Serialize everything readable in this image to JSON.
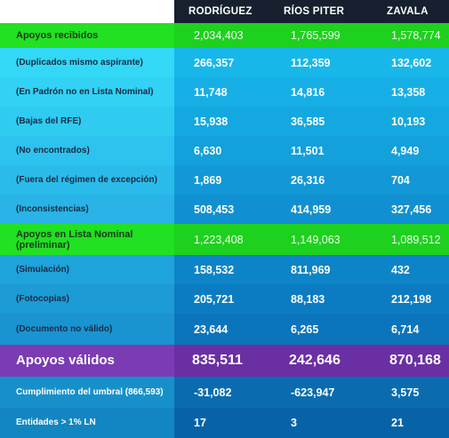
{
  "chart_data": {
    "type": "table",
    "columns": [
      "RODRÍGUEZ",
      "RÍOS PITER",
      "ZAVALA"
    ],
    "rows": [
      {
        "label": "Apoyos recibidos",
        "values": [
          "2,034,403",
          "1,765,599",
          "1,578,774"
        ],
        "style": "green"
      },
      {
        "label": "(Duplicados mismo aspirante)",
        "values": [
          "266,357",
          "112,359",
          "132,602"
        ],
        "style": "blue"
      },
      {
        "label": "(En Padrón no en Lista Nominal)",
        "values": [
          "11,748",
          "14,816",
          "13,358"
        ],
        "style": "blue"
      },
      {
        "label": "(Bajas del RFE)",
        "values": [
          "15,938",
          "36,585",
          "10,193"
        ],
        "style": "blue"
      },
      {
        "label": "(No encontrados)",
        "values": [
          "6,630",
          "11,501",
          "4,949"
        ],
        "style": "blue"
      },
      {
        "label": "(Fuera del régimen de excepción)",
        "values": [
          "1,869",
          "26,316",
          "704"
        ],
        "style": "blue"
      },
      {
        "label": "(Inconsistencias)",
        "values": [
          "508,453",
          "414,959",
          "327,456"
        ],
        "style": "blue"
      },
      {
        "label": "Apoyos en Lista Nominal (preliminar)",
        "values": [
          "1,223,408",
          "1,149,063",
          "1,089,512"
        ],
        "style": "green"
      },
      {
        "label": "(Simulación)",
        "values": [
          "158,532",
          "811,969",
          "432"
        ],
        "style": "blue"
      },
      {
        "label": "(Fotocopias)",
        "values": [
          "205,721",
          "88,183",
          "212,198"
        ],
        "style": "blue"
      },
      {
        "label": "(Documento no válido)",
        "values": [
          "23,644",
          "6,265",
          "6,714"
        ],
        "style": "blue"
      },
      {
        "label": "Apoyos válidos",
        "values": [
          "835,511",
          "242,646",
          "870,168"
        ],
        "style": "purple"
      },
      {
        "label": "Cumplimiento del umbral (866,593)",
        "values": [
          "-31,082",
          "-623,947",
          "3,575"
        ],
        "style": "bottom"
      },
      {
        "label": "Entidades > 1% LN",
        "values": [
          "17",
          "3",
          "21"
        ],
        "style": "bottom"
      }
    ]
  },
  "colors": {
    "header_bg": "#16202e",
    "green_label": "#22e022",
    "green_value": "#1ed11e",
    "purple_label": "#7a3bb3",
    "purple_value": "#6b2fa4"
  }
}
